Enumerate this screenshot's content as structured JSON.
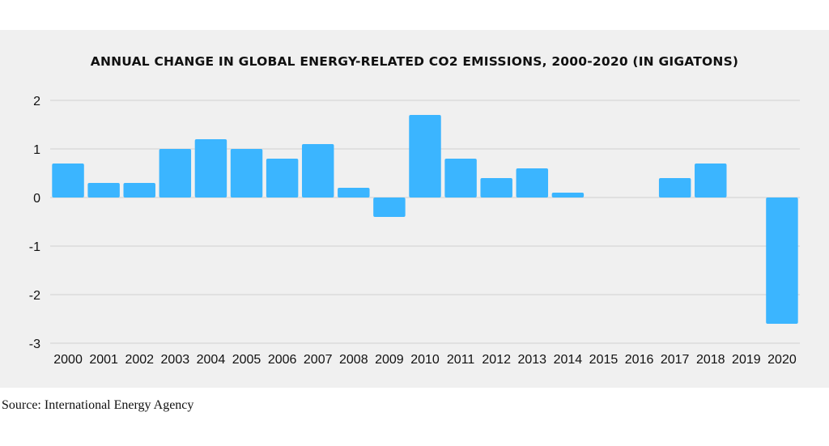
{
  "chart_data": {
    "type": "bar",
    "title": "ANNUAL CHANGE IN GLOBAL ENERGY-RELATED CO2 EMISSIONS, 2000-2020 (IN GIGATONS)",
    "xlabel": "",
    "ylabel": "",
    "categories": [
      "2000",
      "2001",
      "2002",
      "2003",
      "2004",
      "2005",
      "2006",
      "2007",
      "2008",
      "2009",
      "2010",
      "2011",
      "2012",
      "2013",
      "2014",
      "2015",
      "2016",
      "2017",
      "2018",
      "2019",
      "2020"
    ],
    "values": [
      0.7,
      0.3,
      0.3,
      1.0,
      1.2,
      1.0,
      0.8,
      1.1,
      0.2,
      -0.4,
      1.7,
      0.8,
      0.4,
      0.6,
      0.1,
      0,
      0,
      0.4,
      0.7,
      0,
      -2.6
    ],
    "ylim": [
      -3,
      2
    ],
    "yticks": [
      2,
      1,
      0,
      -1,
      -2,
      -3
    ],
    "grid": true,
    "bar_color": "#3bb5ff",
    "grid_color": "#d0d0d0",
    "background": "#f0f0f0"
  },
  "footer": {
    "source": "Source: International Energy Agency"
  }
}
